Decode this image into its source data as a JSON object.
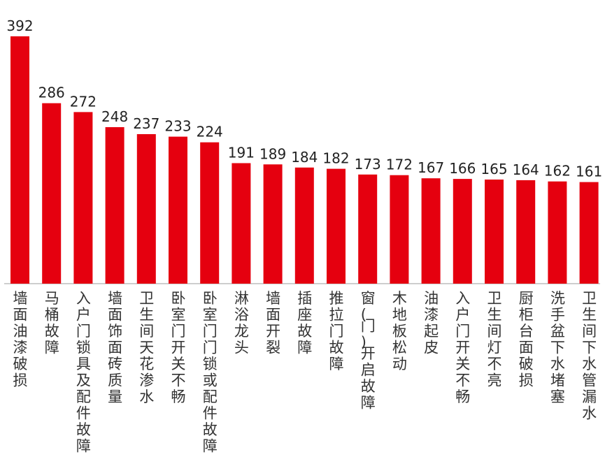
{
  "chart_data": {
    "type": "bar",
    "title": "",
    "xlabel": "",
    "ylabel": "",
    "ylim": [
      0,
      392
    ],
    "grid": false,
    "legend": "none",
    "colors": {
      "bar": "#e5000f",
      "baseline": "#bdbdbd"
    },
    "categories": [
      "墙面油漆破损",
      "马桶故障",
      "入户门锁具及配件故障",
      "墙面饰面砖质量",
      "卫生间天花渗水",
      "卧室门开关不畅",
      "卧室门门锁或配件故障",
      "淋浴龙头",
      "墙面开裂",
      "插座故障",
      "推拉门故障",
      "窗(门)开启故障",
      "木地板松动",
      "油漆起皮",
      "入户门开关不畅",
      "卫生间灯不亮",
      "厨柜台面破损",
      "洗手盆下水堵塞",
      "卫生间下水管漏水"
    ],
    "values": [
      392,
      286,
      272,
      248,
      237,
      233,
      224,
      191,
      189,
      184,
      182,
      173,
      172,
      167,
      166,
      165,
      164,
      162,
      161
    ]
  }
}
